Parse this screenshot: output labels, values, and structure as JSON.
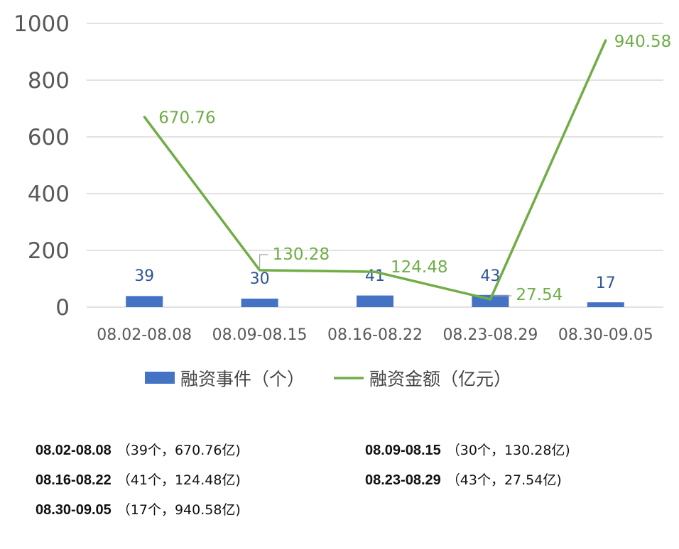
{
  "chart_data": {
    "type": "bar",
    "categories": [
      "08.02-08.08",
      "08.09-08.15",
      "08.16-08.22",
      "08.23-08.29",
      "08.30-09.05"
    ],
    "series": [
      {
        "name": "融资事件（个）",
        "kind": "bar",
        "color": "#4472c4",
        "values": [
          39,
          30,
          41,
          43,
          17
        ]
      },
      {
        "name": "融资金额（亿元）",
        "kind": "line",
        "color": "#70ad47",
        "values": [
          670.76,
          130.28,
          124.48,
          27.54,
          940.58
        ]
      }
    ],
    "bar_labels": [
      "39",
      "30",
      "41",
      "43",
      "17"
    ],
    "line_labels": [
      "670.76",
      "130.28",
      "124.48",
      "27.54",
      "940.58"
    ],
    "yticks": [
      "0",
      "200",
      "400",
      "600",
      "800",
      "1000"
    ],
    "ylim": [
      0,
      1000
    ],
    "grid": true,
    "legend_position": "bottom"
  },
  "notes": [
    {
      "period": "08.02-08.08",
      "detail": "（39个，670.76亿)"
    },
    {
      "period": "08.09-08.15",
      "detail": "（30个，130.28亿)"
    },
    {
      "period": "08.16-08.22",
      "detail": "（41个，124.48亿)"
    },
    {
      "period": "08.23-08.29",
      "detail": "（43个，27.54亿)"
    },
    {
      "period": "08.30-09.05",
      "detail": "（17个，940.58亿)"
    }
  ]
}
